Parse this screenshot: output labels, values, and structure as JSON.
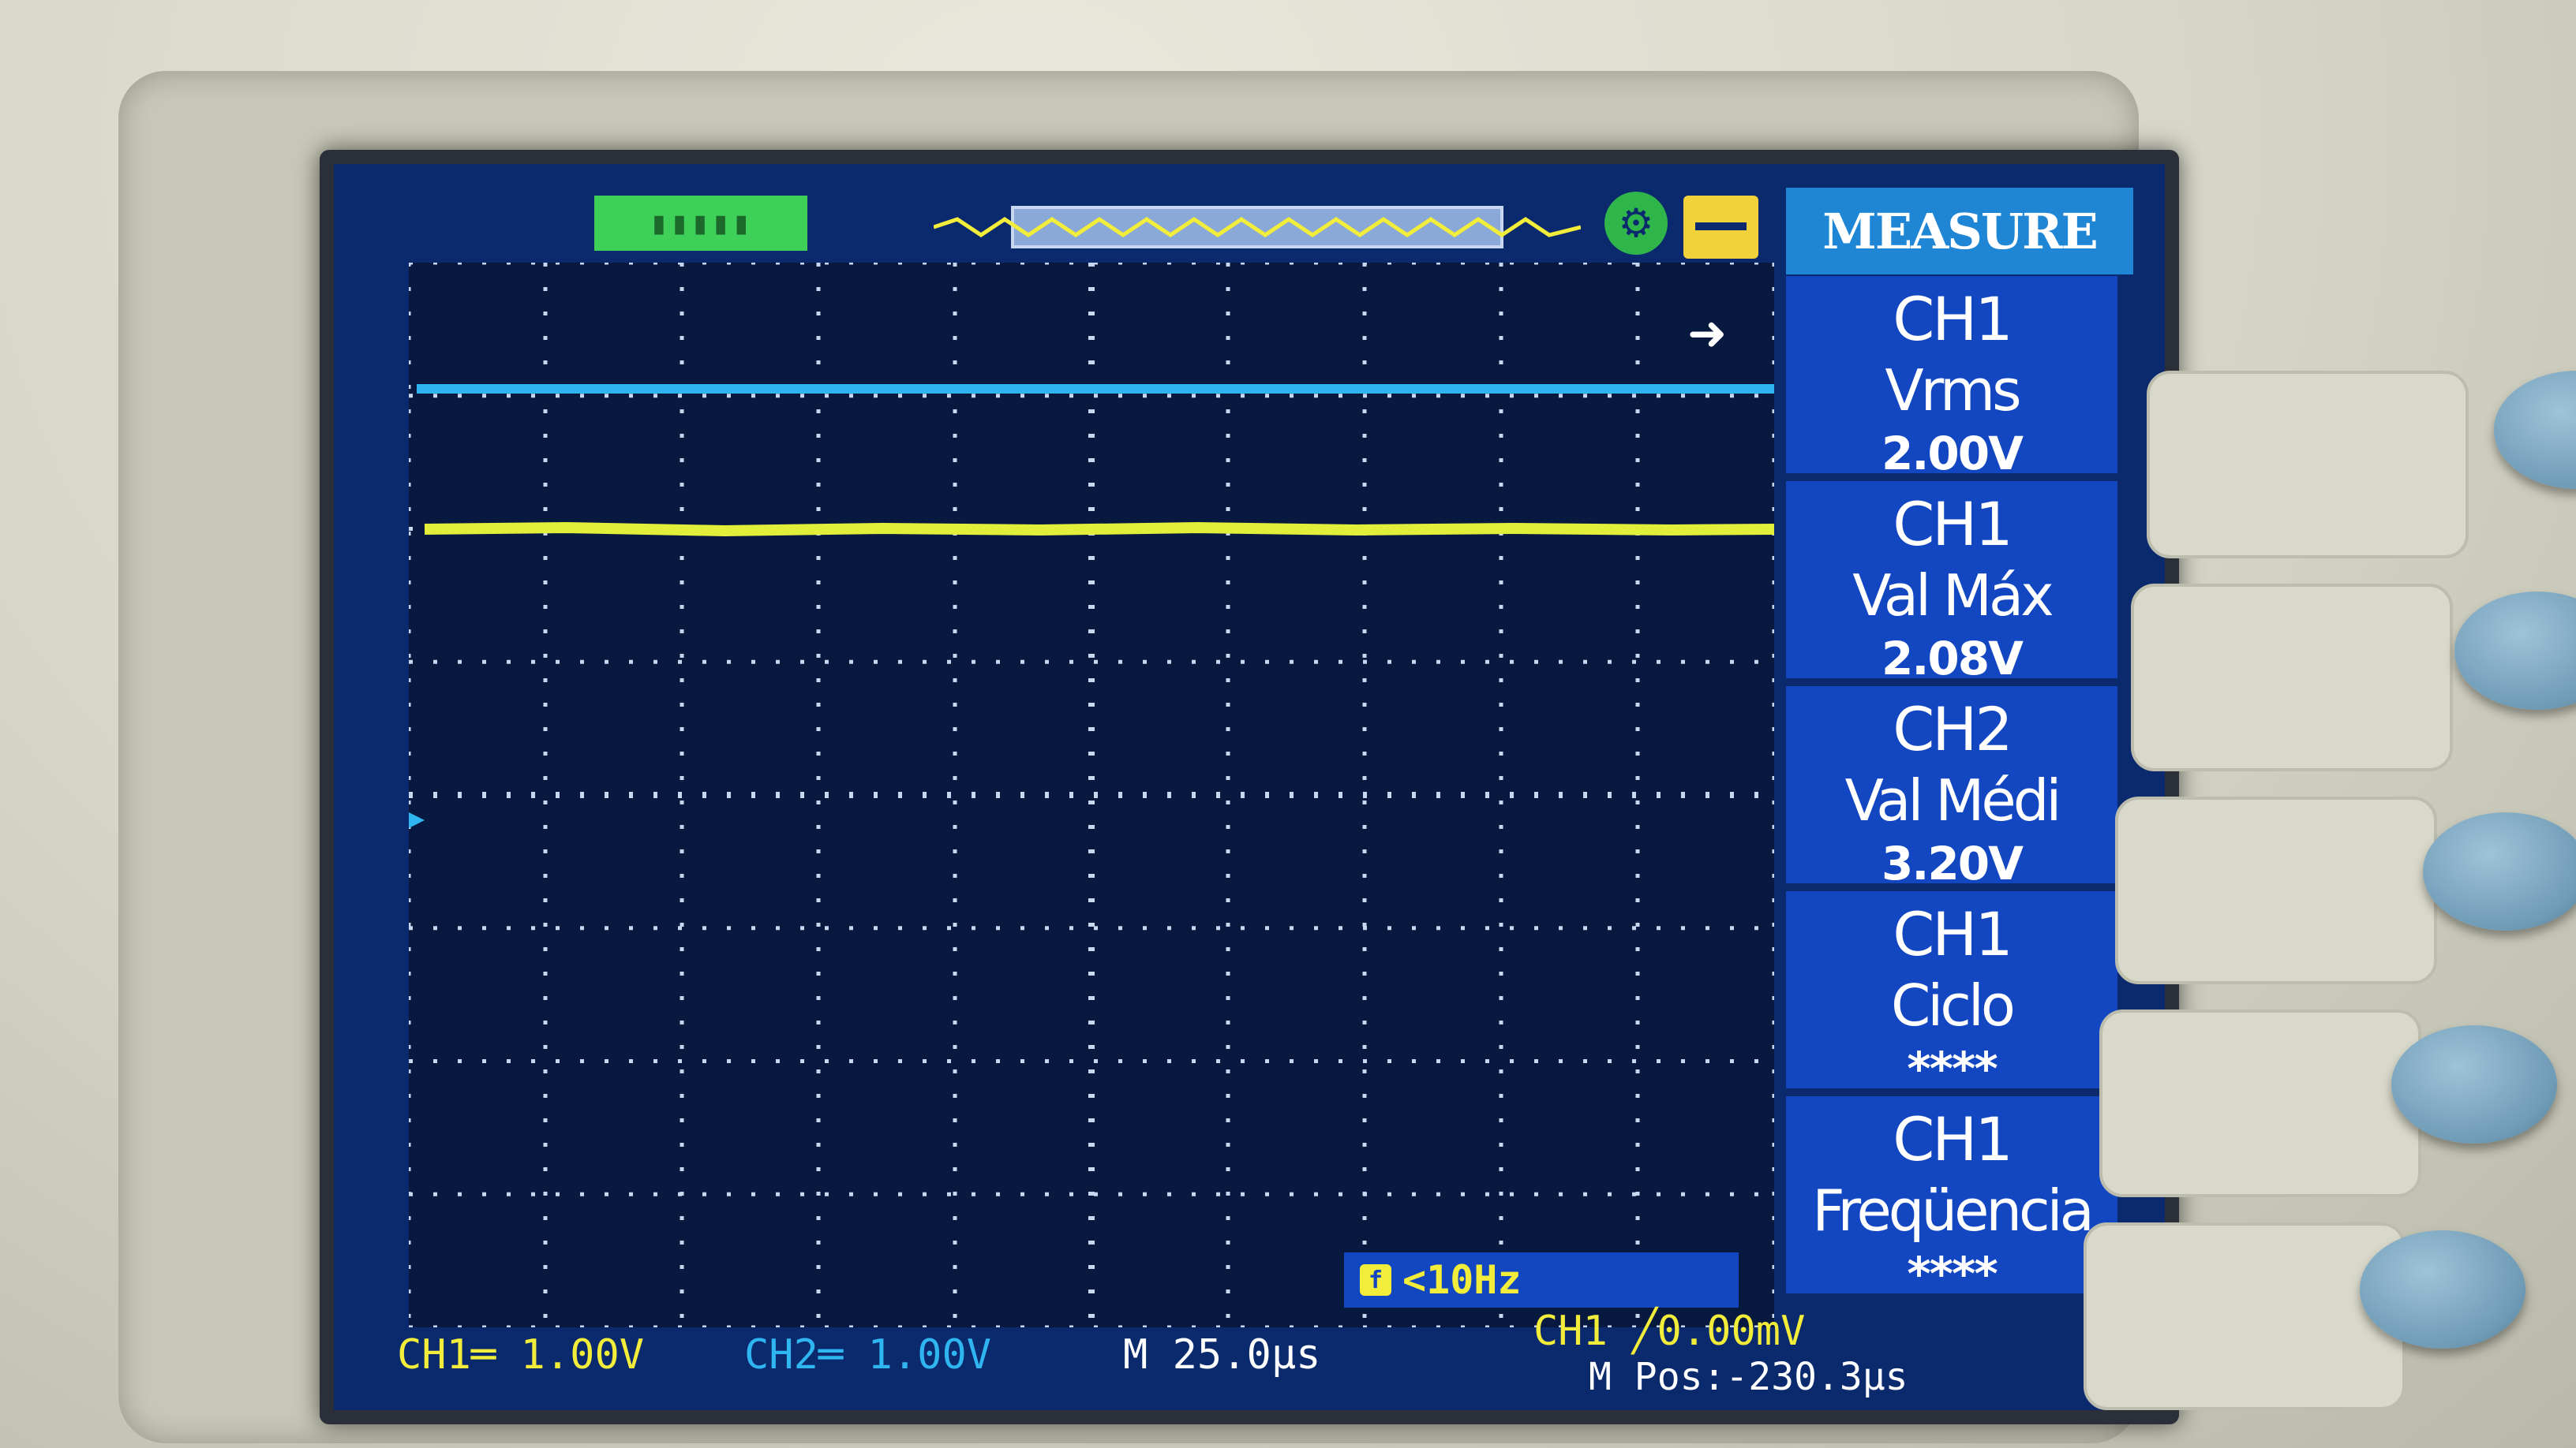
{
  "header": {
    "run_status": "▮▮▮▮▮",
    "trigger_icon": "trigger-icon",
    "save_icon": "usb-icon"
  },
  "menu": {
    "title": "MEASURE",
    "items": [
      {
        "line1": "CH1",
        "line2": "Vrms",
        "line3": "2.00V"
      },
      {
        "line1": "CH1",
        "line2": "Val Máx",
        "line3": "2.08V"
      },
      {
        "line1": "CH2",
        "line2": "Val Médi",
        "line3": "3.20V"
      },
      {
        "line1": "CH1",
        "line2": "Ciclo",
        "line3": "****"
      },
      {
        "line1": "CH1",
        "line2": "Freqüencia",
        "line3": "****"
      }
    ]
  },
  "freq_readout": "<10Hz",
  "status": {
    "ch1": "CH1═ 1.00V",
    "ch2": "CH2═ 1.00V",
    "timebase": "M 25.0μs",
    "trigger": "CH1 ╱0.00mV",
    "position": "M Pos:-230.3μs"
  },
  "colors": {
    "ch1": "#f2ec3a",
    "ch2": "#2fb5f0",
    "screen_bg": "#0b2a6e",
    "menu_bg": "#1347c2"
  }
}
